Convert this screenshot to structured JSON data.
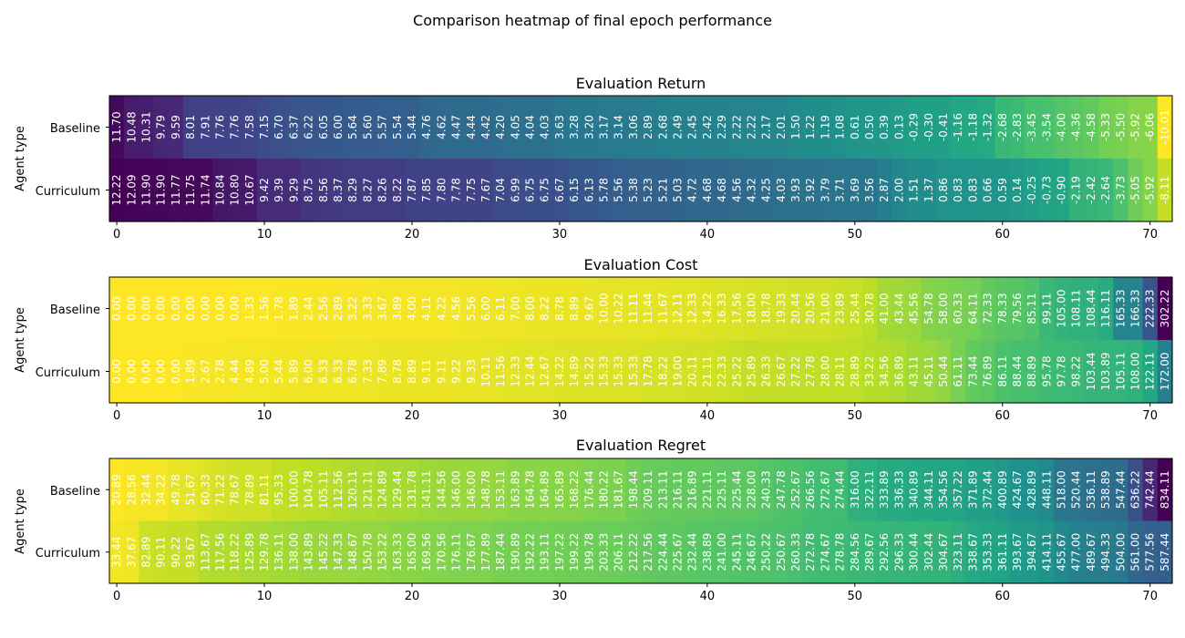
{
  "figure": {
    "suptitle": "Comparison heatmap of final epoch performance"
  },
  "chart_data": [
    {
      "type": "heatmap",
      "title": "Evaluation Return",
      "ylabel": "Agent type",
      "xlabel": "",
      "rows": [
        "Baseline",
        "Curriculum"
      ],
      "xticks": [
        0,
        10,
        20,
        30,
        40,
        50,
        60,
        70
      ],
      "colormap": "viridis",
      "values": [
        [
          11.7,
          10.48,
          10.31,
          9.79,
          9.59,
          8.01,
          7.91,
          7.76,
          7.76,
          7.58,
          7.15,
          6.7,
          6.37,
          6.22,
          6.05,
          6.0,
          5.64,
          5.6,
          5.57,
          5.54,
          5.44,
          4.76,
          4.62,
          4.47,
          4.44,
          4.42,
          4.2,
          4.05,
          4.04,
          4.03,
          3.63,
          3.28,
          3.2,
          3.17,
          3.14,
          3.06,
          2.89,
          2.68,
          2.49,
          2.45,
          2.42,
          2.29,
          2.22,
          2.22,
          2.17,
          2.01,
          1.5,
          1.22,
          1.19,
          1.08,
          0.61,
          0.5,
          0.39,
          0.13,
          -0.29,
          -0.3,
          -0.41,
          -1.16,
          -1.18,
          -1.32,
          -2.68,
          -2.83,
          -3.45,
          -3.54,
          -4.0,
          -4.36,
          -4.58,
          -5.33,
          -5.5,
          -5.92,
          -6.06,
          -10.01
        ],
        [
          12.22,
          12.09,
          11.9,
          11.9,
          11.77,
          11.75,
          11.74,
          10.84,
          10.8,
          10.67,
          9.42,
          9.39,
          9.29,
          8.75,
          8.56,
          8.37,
          8.29,
          8.27,
          8.26,
          8.22,
          7.87,
          7.85,
          7.8,
          7.78,
          7.75,
          7.67,
          7.04,
          6.99,
          6.75,
          6.75,
          6.67,
          6.15,
          6.13,
          5.78,
          5.56,
          5.38,
          5.23,
          5.21,
          5.03,
          4.72,
          4.68,
          4.68,
          4.56,
          4.32,
          4.25,
          4.03,
          3.93,
          3.92,
          3.79,
          3.71,
          3.69,
          3.56,
          2.87,
          2.0,
          1.51,
          1.37,
          0.86,
          0.83,
          0.83,
          0.66,
          0.59,
          0.14,
          -0.25,
          -0.73,
          -0.9,
          -2.19,
          -2.42,
          -2.64,
          -3.73,
          -5.05,
          -5.92,
          -8.11
        ]
      ]
    },
    {
      "type": "heatmap",
      "title": "Evaluation Cost",
      "ylabel": "Agent type",
      "xlabel": "",
      "rows": [
        "Baseline",
        "Curriculum"
      ],
      "xticks": [
        0,
        10,
        20,
        30,
        40,
        50,
        60,
        70
      ],
      "colormap": "viridis",
      "values": [
        [
          0.0,
          0.0,
          0.0,
          0.0,
          0.0,
          0.0,
          0.0,
          0.0,
          0.0,
          1.33,
          1.56,
          1.78,
          1.89,
          2.44,
          2.56,
          2.89,
          3.22,
          3.33,
          3.67,
          3.89,
          4.0,
          4.11,
          4.22,
          4.56,
          5.56,
          6.0,
          6.11,
          7.0,
          8.0,
          8.22,
          8.78,
          8.89,
          9.67,
          10.0,
          10.22,
          11.11,
          11.44,
          11.67,
          12.11,
          12.33,
          14.22,
          16.33,
          17.56,
          18.0,
          18.78,
          19.33,
          20.44,
          20.56,
          21.0,
          23.89,
          25.44,
          30.78,
          41.0,
          43.44,
          45.56,
          54.78,
          58.0,
          60.33,
          64.11,
          72.33,
          78.33,
          79.56,
          85.11,
          99.11,
          105.0,
          108.11,
          108.44,
          116.11,
          165.33,
          166.33,
          222.33,
          302.22
        ],
        [
          0.0,
          0.0,
          0.0,
          0.0,
          0.0,
          1.89,
          2.67,
          2.78,
          4.44,
          4.89,
          5.0,
          5.44,
          5.89,
          6.0,
          6.33,
          6.33,
          6.78,
          7.33,
          7.89,
          8.78,
          8.89,
          9.11,
          9.11,
          9.22,
          9.33,
          10.11,
          11.56,
          12.33,
          12.44,
          12.67,
          14.22,
          14.89,
          15.22,
          15.33,
          15.33,
          15.33,
          17.78,
          18.22,
          19.0,
          20.11,
          21.11,
          22.33,
          25.22,
          25.89,
          26.33,
          26.67,
          27.22,
          27.78,
          28.0,
          28.11,
          28.89,
          33.22,
          34.56,
          36.89,
          43.11,
          45.11,
          50.44,
          61.11,
          73.44,
          76.89,
          86.11,
          88.44,
          88.89,
          95.78,
          97.78,
          98.22,
          103.44,
          103.89,
          105.11,
          108.0,
          122.11,
          172.0
        ]
      ]
    },
    {
      "type": "heatmap",
      "title": "Evaluation Regret",
      "ylabel": "Agent type",
      "xlabel": "",
      "rows": [
        "Baseline",
        "Curriculum"
      ],
      "xticks": [
        0,
        10,
        20,
        30,
        40,
        50,
        60,
        70
      ],
      "colormap": "viridis",
      "values": [
        [
          20.89,
          28.56,
          32.44,
          34.22,
          49.78,
          51.67,
          60.33,
          71.22,
          78.67,
          78.89,
          81.11,
          95.33,
          100.0,
          104.78,
          105.11,
          112.56,
          120.11,
          121.11,
          124.89,
          129.44,
          131.78,
          141.11,
          144.56,
          146.0,
          146.0,
          148.78,
          153.11,
          163.89,
          164.78,
          164.89,
          165.89,
          168.22,
          176.44,
          180.22,
          181.67,
          198.44,
          209.11,
          213.11,
          216.11,
          216.89,
          221.11,
          225.11,
          225.44,
          228.0,
          240.33,
          247.78,
          252.67,
          266.56,
          272.67,
          274.44,
          316.0,
          322.11,
          333.89,
          336.33,
          340.89,
          344.11,
          354.56,
          357.22,
          371.89,
          372.44,
          400.89,
          424.67,
          428.89,
          448.11,
          518.0,
          520.44,
          536.11,
          538.89,
          547.44,
          636.22,
          742.44,
          834.11
        ],
        [
          33.44,
          37.67,
          82.89,
          90.11,
          90.22,
          93.67,
          113.67,
          117.56,
          118.22,
          125.89,
          129.78,
          136.11,
          138.0,
          143.89,
          145.22,
          147.33,
          148.67,
          150.78,
          153.22,
          163.33,
          165.0,
          169.56,
          170.56,
          176.11,
          176.67,
          177.89,
          187.44,
          190.89,
          192.22,
          193.11,
          197.22,
          199.22,
          199.78,
          203.33,
          206.11,
          212.22,
          217.56,
          224.44,
          225.67,
          232.44,
          238.89,
          241.0,
          245.11,
          246.67,
          250.22,
          250.67,
          260.33,
          272.78,
          274.67,
          278.78,
          284.56,
          289.67,
          292.56,
          296.33,
          300.44,
          302.44,
          304.67,
          323.11,
          338.67,
          353.33,
          361.11,
          393.67,
          394.67,
          414.11,
          455.67,
          477.0,
          489.67,
          494.33,
          504.0,
          561.0,
          577.56,
          587.44
        ]
      ]
    }
  ]
}
